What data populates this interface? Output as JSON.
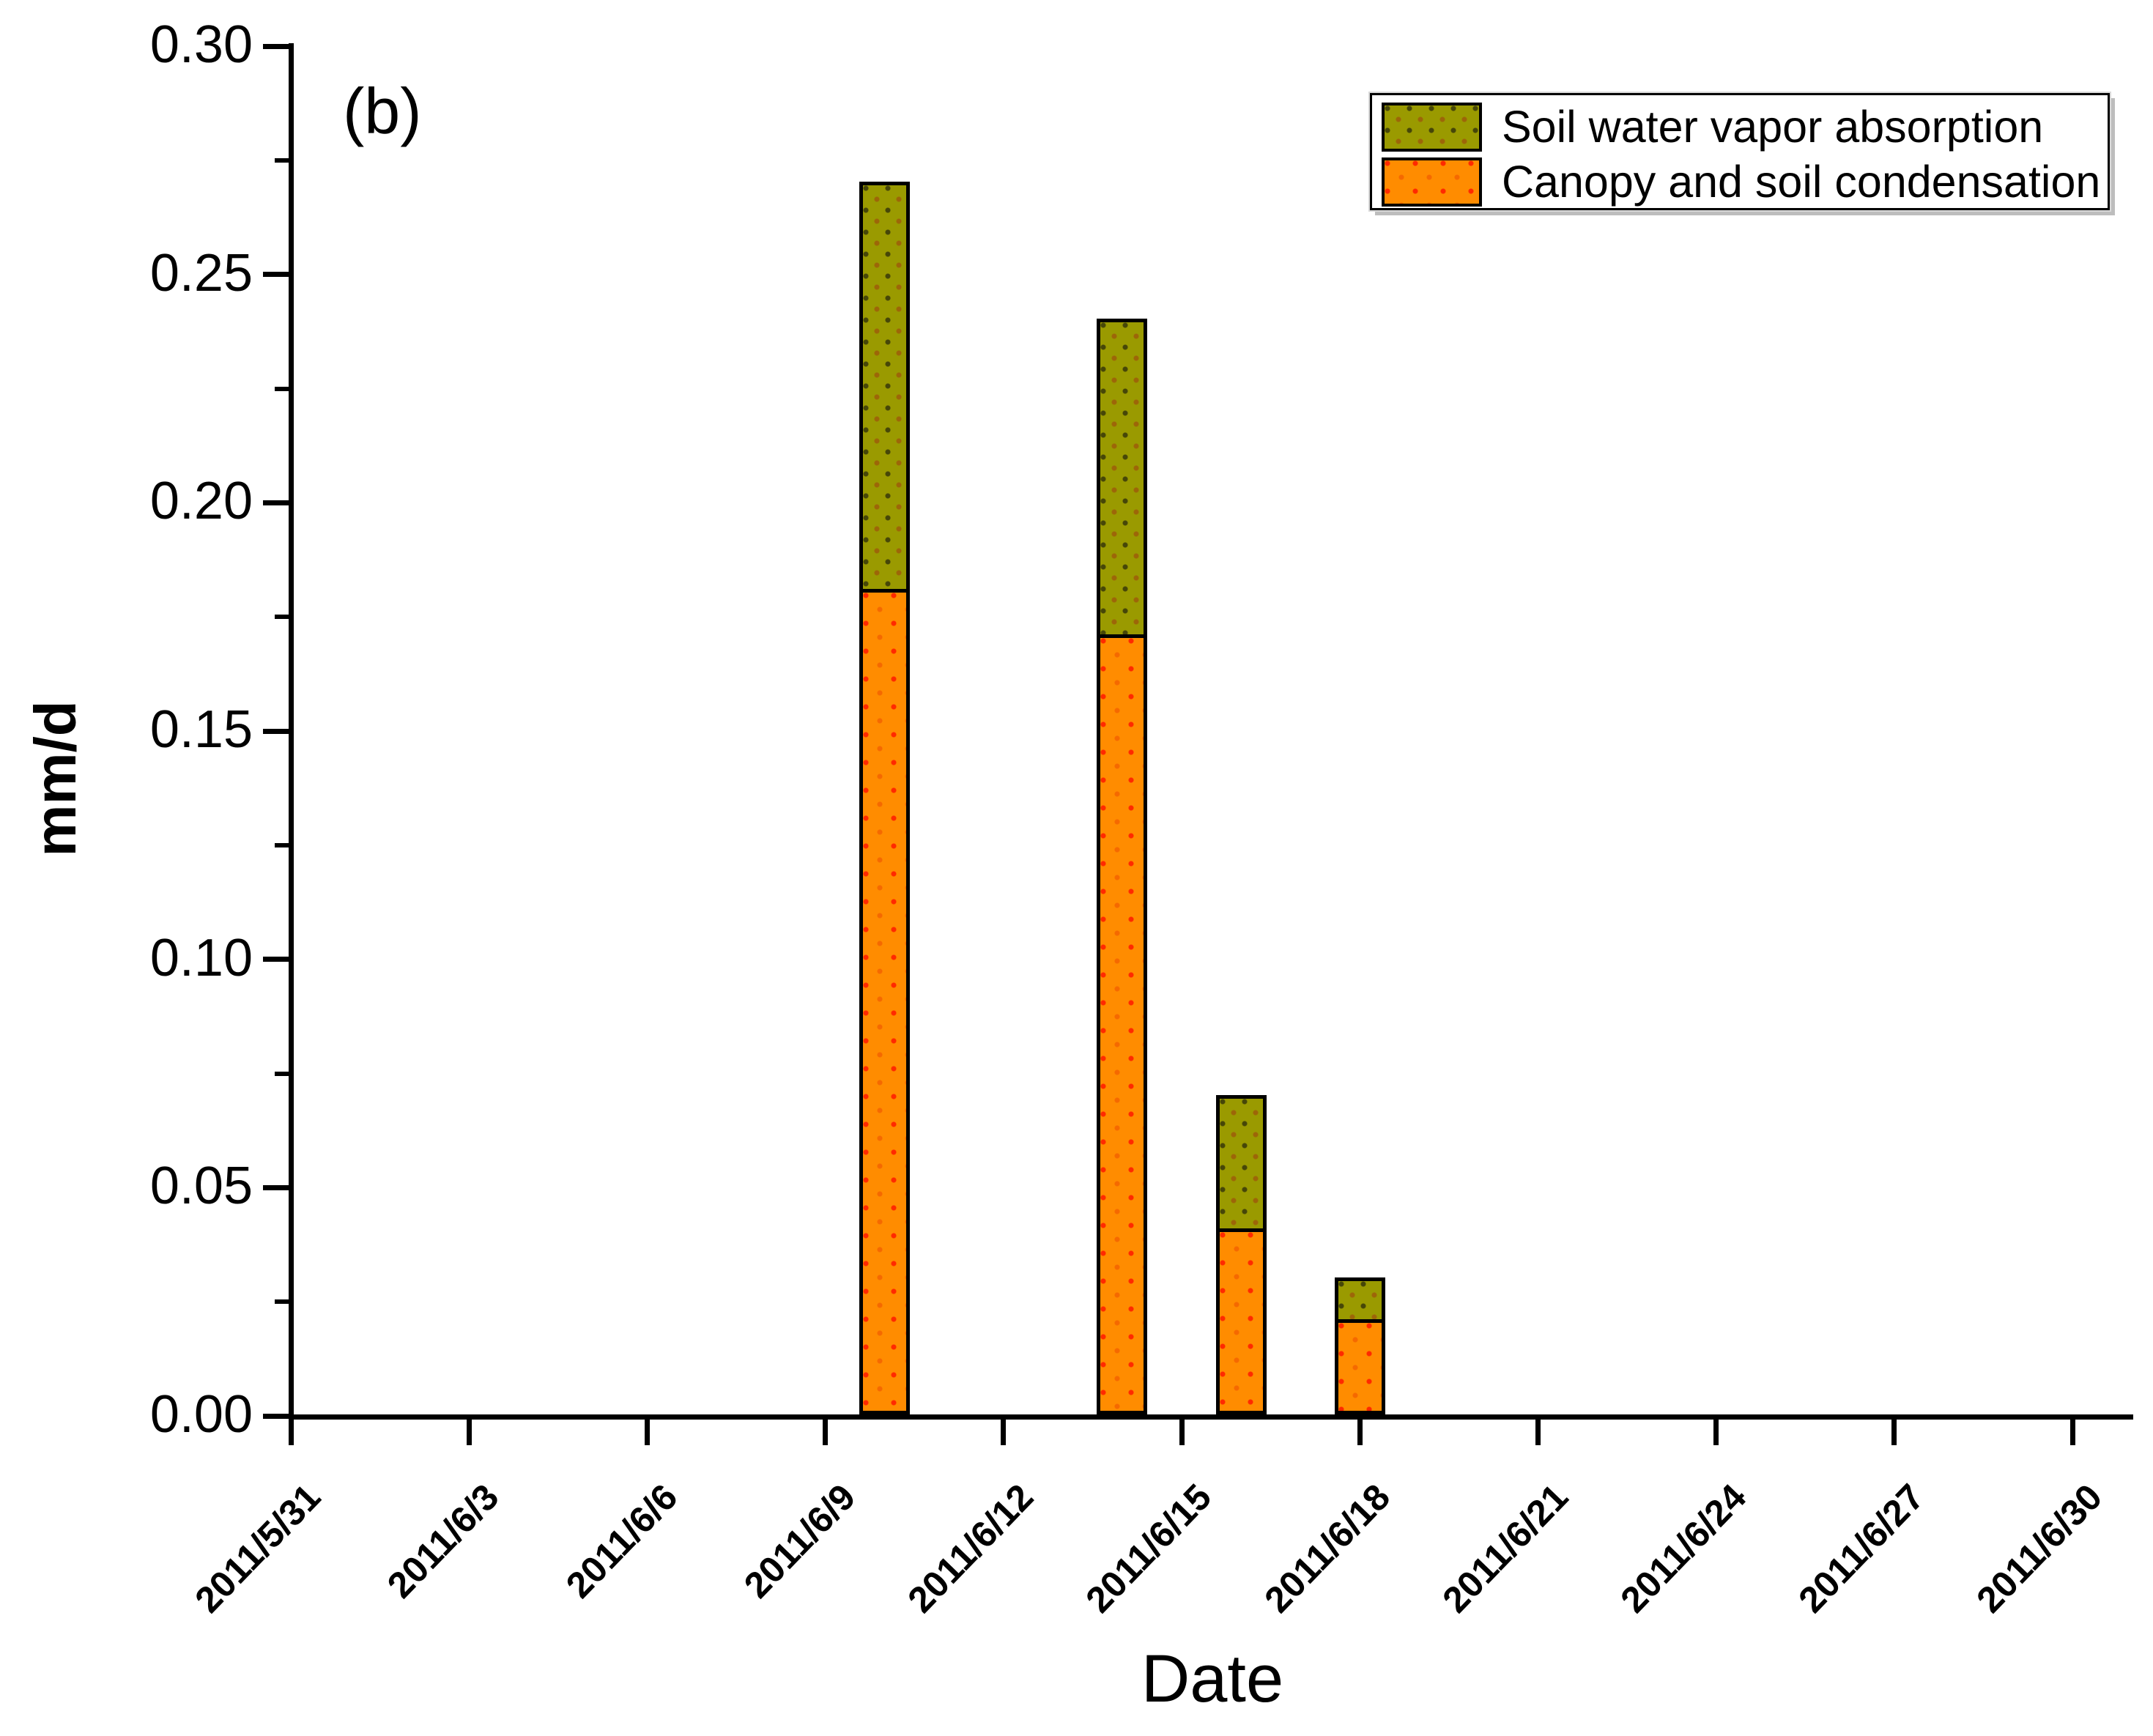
{
  "panel_label": "(b)",
  "y_axis": {
    "label": "mm/d",
    "tick_labels": [
      "0.00",
      "0.05",
      "0.10",
      "0.15",
      "0.20",
      "0.25",
      "0.30"
    ],
    "min": 0.0,
    "max": 0.3,
    "major_step": 0.05,
    "minor_step": 0.025
  },
  "x_axis": {
    "label": "Date",
    "tick_labels": [
      "2011/5/31",
      "2011/6/3",
      "2011/6/6",
      "2011/6/9",
      "2011/6/12",
      "2011/6/15",
      "2011/6/18",
      "2011/6/21",
      "2011/6/24",
      "2011/6/27",
      "2011/6/30"
    ]
  },
  "legend": {
    "items": [
      {
        "label": "Soil water vapor absorption",
        "color": "#9a9a00",
        "pattern": "olive"
      },
      {
        "label": "Canopy and soil condensation",
        "color": "#ff8c00",
        "pattern": "orange"
      }
    ]
  },
  "colors": {
    "absorption": "#9a9a00",
    "condensation": "#ff8c00",
    "axis": "#000000",
    "background": "#ffffff"
  },
  "chart_data": {
    "type": "bar",
    "stacked": true,
    "title": "",
    "xlabel": "Date",
    "ylabel": "mm/d",
    "ylim": [
      0,
      0.3
    ],
    "x_range": [
      "2011/5/31",
      "2011/6/30"
    ],
    "x_tick_interval_days": 3,
    "grid": false,
    "legend_position": "top-right",
    "categories": [
      "2011/6/10",
      "2011/6/14",
      "2011/6/16",
      "2011/6/18"
    ],
    "series": [
      {
        "name": "Canopy and soil condensation",
        "color": "#ff8c00",
        "values": [
          0.18,
          0.17,
          0.04,
          0.02
        ]
      },
      {
        "name": "Soil water vapor absorption",
        "color": "#9a9a00",
        "values": [
          0.09,
          0.07,
          0.03,
          0.01
        ]
      }
    ],
    "totals": [
      0.27,
      0.24,
      0.07,
      0.03
    ]
  }
}
